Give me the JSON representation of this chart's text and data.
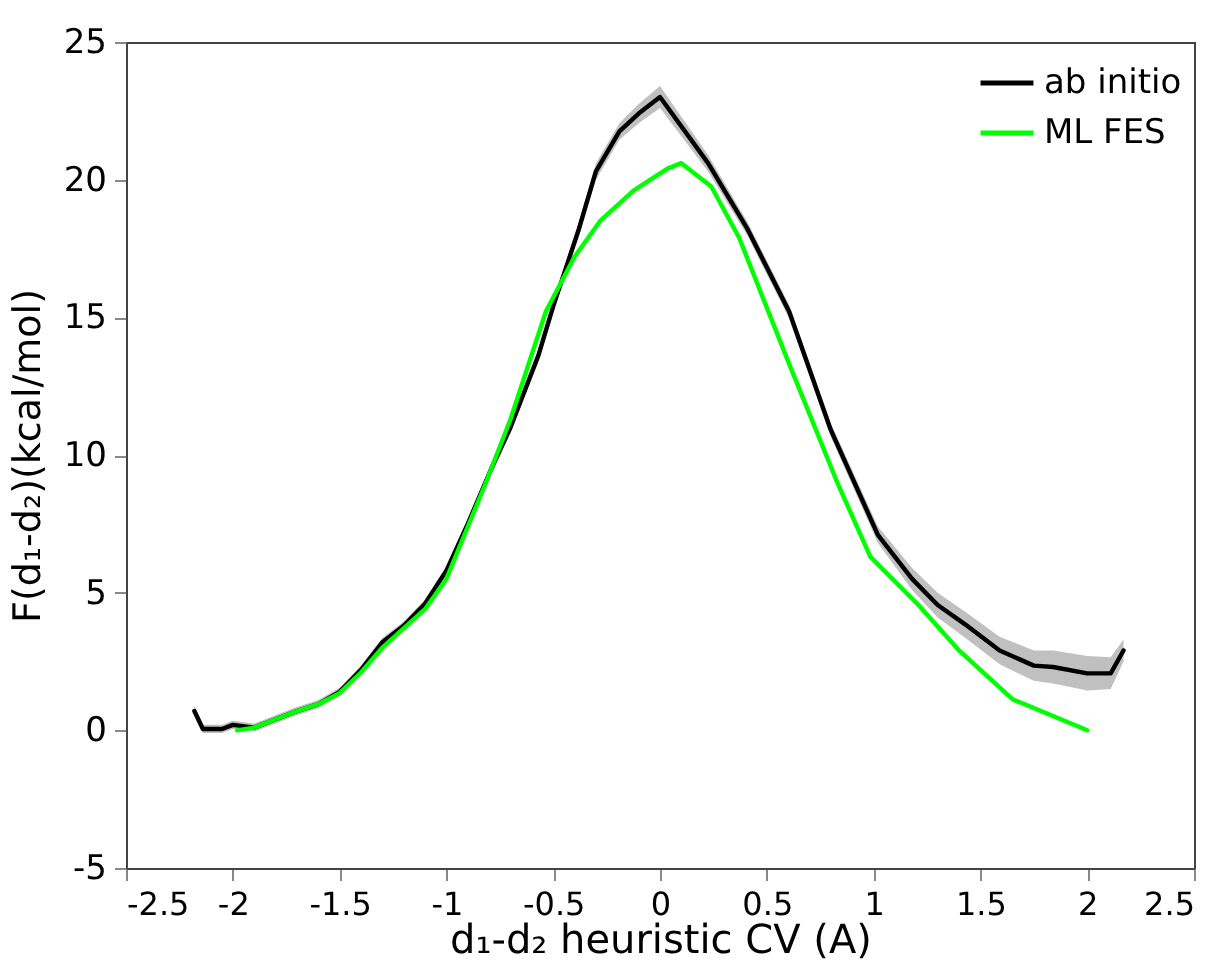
{
  "chart_data": {
    "type": "line",
    "xlabel": "d₁-d₂ heuristic CV (A)",
    "ylabel": "F(d₁-d₂)(kcal/mol)",
    "xlim": [
      -2.5,
      2.5
    ],
    "xticks": [
      -2.5,
      -2,
      -1.5,
      -1,
      -0.5,
      0,
      0.5,
      1,
      1.5,
      2,
      2.5
    ],
    "ylim": [
      -5,
      25
    ],
    "yticks": [
      -5,
      0,
      5,
      10,
      15,
      20,
      25
    ],
    "grid": false,
    "legend": "top right",
    "line_style": "solid",
    "marker": "none",
    "series": [
      {
        "name": "ab initio",
        "color": "#000000",
        "x": [
          -2.18,
          -2.14,
          -2.05,
          -2.0,
          -1.9,
          -1.8,
          -1.7,
          -1.6,
          -1.5,
          -1.4,
          -1.3,
          -1.2,
          -1.1,
          -1.0,
          -0.9,
          -0.79,
          -0.7,
          -0.57,
          -0.5,
          -0.38,
          -0.3,
          -0.19,
          -0.1,
          0.0,
          0.225,
          0.41,
          0.605,
          0.8,
          1.02,
          1.18,
          1.3,
          1.43,
          1.59,
          1.75,
          1.84,
          2.0,
          2.11,
          2.17
        ],
        "values": [
          0.7,
          0.05,
          0.05,
          0.2,
          0.1,
          0.4,
          0.7,
          0.95,
          1.4,
          2.2,
          3.2,
          3.8,
          4.6,
          5.8,
          7.5,
          9.5,
          11.0,
          13.6,
          15.4,
          18.2,
          20.3,
          21.75,
          22.4,
          23.0,
          20.6,
          18.2,
          15.2,
          10.9,
          7.1,
          5.5,
          4.55,
          3.84,
          2.9,
          2.35,
          2.3,
          2.07,
          2.07,
          2.9
        ],
        "lower": [
          0.5,
          -0.1,
          -0.1,
          0.05,
          -0.05,
          0.25,
          0.55,
          0.8,
          1.25,
          2.05,
          3.05,
          3.65,
          4.45,
          5.65,
          7.35,
          9.3,
          10.8,
          13.4,
          15.2,
          17.95,
          20.0,
          21.45,
          22.05,
          22.6,
          20.3,
          17.95,
          14.95,
          10.65,
          6.8,
          5.1,
          4.1,
          3.35,
          2.4,
          1.8,
          1.7,
          1.45,
          1.5,
          2.5
        ],
        "upper": [
          0.9,
          0.2,
          0.2,
          0.35,
          0.25,
          0.55,
          0.85,
          1.1,
          1.55,
          2.35,
          3.35,
          3.95,
          4.75,
          5.95,
          7.65,
          9.7,
          11.2,
          13.8,
          15.6,
          18.45,
          20.6,
          22.05,
          22.75,
          23.4,
          20.9,
          18.45,
          15.45,
          11.15,
          7.4,
          5.9,
          5.0,
          4.3,
          3.4,
          2.9,
          2.9,
          2.7,
          2.65,
          3.3
        ]
      },
      {
        "name": "ML FES",
        "color": "#00ff00",
        "x": [
          -1.98,
          -1.9,
          -1.8,
          -1.7,
          -1.6,
          -1.5,
          -1.4,
          -1.3,
          -1.2,
          -1.1,
          -1.0,
          -0.82,
          -0.7,
          -0.535,
          -0.4,
          -0.28,
          -0.124,
          0.035,
          0.1,
          0.24,
          0.37,
          0.605,
          0.83,
          0.985,
          1.21,
          1.4,
          1.65,
          2.0
        ],
        "values": [
          0.0,
          0.1,
          0.4,
          0.7,
          0.95,
          1.35,
          2.1,
          3.0,
          3.7,
          4.4,
          5.5,
          8.9,
          11.3,
          15.2,
          17.2,
          18.5,
          19.6,
          20.4,
          20.6,
          19.75,
          17.9,
          13.3,
          9.0,
          6.3,
          4.55,
          2.9,
          1.13,
          0.0
        ]
      }
    ]
  }
}
